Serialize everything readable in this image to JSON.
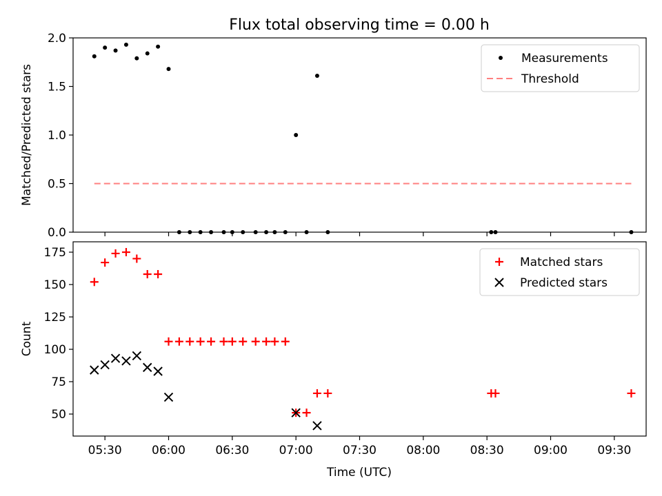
{
  "title": "Flux total observing time = 0.00 h",
  "xlabel": "Time (UTC)",
  "chart_data": [
    {
      "type": "scatter",
      "ylabel": "Matched/Predicted stars",
      "ylim": [
        0,
        2.0
      ],
      "yticks": [
        "0.0",
        "0.5",
        "1.0",
        "1.5",
        "2.0"
      ],
      "xlim": [
        "05:15",
        "09:45"
      ],
      "legend_placement": "top-right",
      "series": [
        {
          "name": "Measurements",
          "color": "#000000",
          "marker": "dot",
          "points": [
            [
              "05:25",
              1.81
            ],
            [
              "05:30",
              1.9
            ],
            [
              "05:35",
              1.87
            ],
            [
              "05:40",
              1.93
            ],
            [
              "05:45",
              1.79
            ],
            [
              "05:50",
              1.84
            ],
            [
              "05:55",
              1.91
            ],
            [
              "06:00",
              1.68
            ],
            [
              "06:05",
              0.0
            ],
            [
              "06:10",
              0.0
            ],
            [
              "06:15",
              0.0
            ],
            [
              "06:20",
              0.0
            ],
            [
              "06:26",
              0.0
            ],
            [
              "06:30",
              0.0
            ],
            [
              "06:35",
              0.0
            ],
            [
              "06:41",
              0.0
            ],
            [
              "06:46",
              0.0
            ],
            [
              "06:50",
              0.0
            ],
            [
              "06:55",
              0.0
            ],
            [
              "07:00",
              1.0
            ],
            [
              "07:05",
              0.0
            ],
            [
              "07:10",
              1.61
            ],
            [
              "07:15",
              0.0
            ],
            [
              "08:32",
              0.0
            ],
            [
              "08:34",
              0.0
            ],
            [
              "09:38",
              0.0
            ]
          ]
        },
        {
          "name": "Threshold",
          "color": "#ff7f7f",
          "marker": "dashed-line",
          "points": [
            [
              "05:25",
              0.5
            ],
            [
              "09:38",
              0.5
            ]
          ]
        }
      ]
    },
    {
      "type": "scatter",
      "ylabel": "Count",
      "ylim": [
        33,
        183
      ],
      "yticks": [
        "50",
        "75",
        "100",
        "125",
        "150",
        "175"
      ],
      "xlim": [
        "05:15",
        "09:45"
      ],
      "legend_placement": "top-right",
      "series": [
        {
          "name": "Matched stars",
          "color": "#ff0000",
          "marker": "plus",
          "points": [
            [
              "05:25",
              152
            ],
            [
              "05:30",
              167
            ],
            [
              "05:35",
              174
            ],
            [
              "05:40",
              175
            ],
            [
              "05:45",
              170
            ],
            [
              "05:50",
              158
            ],
            [
              "05:55",
              158
            ],
            [
              "06:00",
              106
            ],
            [
              "06:05",
              106
            ],
            [
              "06:10",
              106
            ],
            [
              "06:15",
              106
            ],
            [
              "06:20",
              106
            ],
            [
              "06:26",
              106
            ],
            [
              "06:30",
              106
            ],
            [
              "06:35",
              106
            ],
            [
              "06:41",
              106
            ],
            [
              "06:46",
              106
            ],
            [
              "06:50",
              106
            ],
            [
              "06:55",
              106
            ],
            [
              "07:00",
              51
            ],
            [
              "07:05",
              51
            ],
            [
              "07:10",
              66
            ],
            [
              "07:15",
              66
            ],
            [
              "08:32",
              66
            ],
            [
              "08:34",
              66
            ],
            [
              "09:38",
              66
            ]
          ]
        },
        {
          "name": "Predicted stars",
          "color": "#000000",
          "marker": "x",
          "points": [
            [
              "05:25",
              84
            ],
            [
              "05:30",
              88
            ],
            [
              "05:35",
              93
            ],
            [
              "05:40",
              91
            ],
            [
              "05:45",
              95
            ],
            [
              "05:50",
              86
            ],
            [
              "05:55",
              83
            ],
            [
              "06:00",
              63
            ],
            [
              "07:00",
              51
            ],
            [
              "07:10",
              41
            ]
          ]
        }
      ]
    }
  ],
  "xticks": [
    "05:30",
    "06:00",
    "06:30",
    "07:00",
    "07:30",
    "08:00",
    "08:30",
    "09:00",
    "09:30"
  ]
}
